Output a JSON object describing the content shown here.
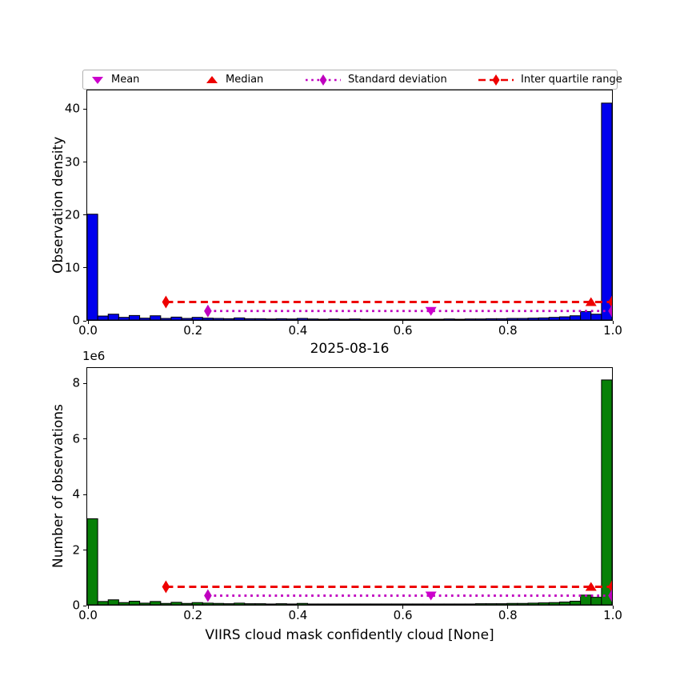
{
  "figure": {
    "title": "2025-08-16",
    "legend": [
      {
        "label": "Mean",
        "marker": "triangle-down-icon",
        "color": "#cc00cc"
      },
      {
        "label": "Median",
        "marker": "triangle-up-icon",
        "color": "#ee0000"
      },
      {
        "label": "Standard deviation",
        "marker": "diamond-dotted-line-icon",
        "color": "#bf00bf"
      },
      {
        "label": "Inter quartile range",
        "marker": "diamond-dashed-line-icon",
        "color": "#ee0000"
      }
    ]
  },
  "chart_data": [
    {
      "type": "bar",
      "name": "observation-density-histogram",
      "title": "",
      "xlabel": "",
      "ylabel": "Observation density",
      "bar_color": "#0000ee",
      "bar_edge_color": "#000000",
      "bin_start": 0.0,
      "bin_width": 0.02,
      "values": [
        20,
        0.75,
        1.1,
        0.5,
        0.85,
        0.35,
        0.8,
        0.3,
        0.55,
        0.3,
        0.5,
        0.35,
        0.3,
        0.25,
        0.4,
        0.25,
        0.25,
        0.2,
        0.25,
        0.2,
        0.3,
        0.2,
        0.15,
        0.2,
        0.15,
        0.2,
        0.15,
        0.15,
        0.15,
        0.15,
        0.15,
        0.15,
        0.15,
        0.15,
        0.2,
        0.15,
        0.2,
        0.2,
        0.25,
        0.25,
        0.3,
        0.3,
        0.35,
        0.4,
        0.5,
        0.6,
        0.8,
        1.6,
        1.1,
        41
      ],
      "xlim": [
        0.0,
        1.0
      ],
      "ylim": [
        0,
        43.4
      ],
      "xticks": [
        [
          0.0,
          "0.0"
        ],
        [
          0.2,
          "0.2"
        ],
        [
          0.4,
          "0.4"
        ],
        [
          0.6,
          "0.6"
        ],
        [
          0.8,
          "0.8"
        ],
        [
          1.0,
          "1.0"
        ]
      ],
      "yticks": [
        [
          0,
          "0"
        ],
        [
          10,
          "10"
        ],
        [
          20,
          "20"
        ],
        [
          30,
          "30"
        ],
        [
          40,
          "40"
        ]
      ],
      "grid": false,
      "colors": {
        "mean": "#cc00cc",
        "median": "#ee0000",
        "std": "#bf00bf",
        "iqr": "#ee0000"
      },
      "annotations": {
        "mean": {
          "x": 0.655,
          "y": 1.7
        },
        "median": {
          "x": 0.96,
          "y": 3.4
        },
        "std_line": {
          "x1": 0.23,
          "x2": 1.0,
          "y": 1.7
        },
        "iqr_line": {
          "x1": 0.15,
          "x2": 1.0,
          "y": 3.4
        }
      }
    },
    {
      "type": "bar",
      "name": "number-of-observations-histogram",
      "title": "",
      "xlabel": "VIIRS cloud mask confidently cloud [None]",
      "ylabel": "Number of observations",
      "offset_label": "1e6",
      "bar_color": "#078007",
      "bar_edge_color": "#000000",
      "bin_start": 0.0,
      "bin_width": 0.02,
      "values": [
        3.1,
        0.12,
        0.18,
        0.08,
        0.13,
        0.06,
        0.12,
        0.05,
        0.09,
        0.05,
        0.08,
        0.06,
        0.05,
        0.04,
        0.06,
        0.04,
        0.04,
        0.03,
        0.04,
        0.03,
        0.05,
        0.03,
        0.03,
        0.03,
        0.03,
        0.03,
        0.03,
        0.03,
        0.03,
        0.03,
        0.03,
        0.03,
        0.03,
        0.03,
        0.03,
        0.03,
        0.03,
        0.04,
        0.04,
        0.04,
        0.05,
        0.05,
        0.06,
        0.07,
        0.08,
        0.1,
        0.13,
        0.35,
        0.27,
        8.1
      ],
      "values_unit": "1e6",
      "xlim": [
        0.0,
        1.0
      ],
      "ylim": [
        0,
        8.53
      ],
      "xticks": [
        [
          0.0,
          "0.0"
        ],
        [
          0.2,
          "0.2"
        ],
        [
          0.4,
          "0.4"
        ],
        [
          0.6,
          "0.6"
        ],
        [
          0.8,
          "0.8"
        ],
        [
          1.0,
          "1.0"
        ]
      ],
      "yticks": [
        [
          0,
          "0"
        ],
        [
          2,
          "2"
        ],
        [
          4,
          "4"
        ],
        [
          6,
          "6"
        ],
        [
          8,
          "8"
        ]
      ],
      "grid": false,
      "colors": {
        "mean": "#cc00cc",
        "median": "#ee0000",
        "std": "#bf00bf",
        "iqr": "#ee0000"
      },
      "annotations": {
        "mean": {
          "x": 0.655,
          "y": 0.33
        },
        "median": {
          "x": 0.96,
          "y": 0.65
        },
        "std_line": {
          "x1": 0.23,
          "x2": 1.0,
          "y": 0.33
        },
        "iqr_line": {
          "x1": 0.15,
          "x2": 1.0,
          "y": 0.65
        }
      }
    }
  ]
}
